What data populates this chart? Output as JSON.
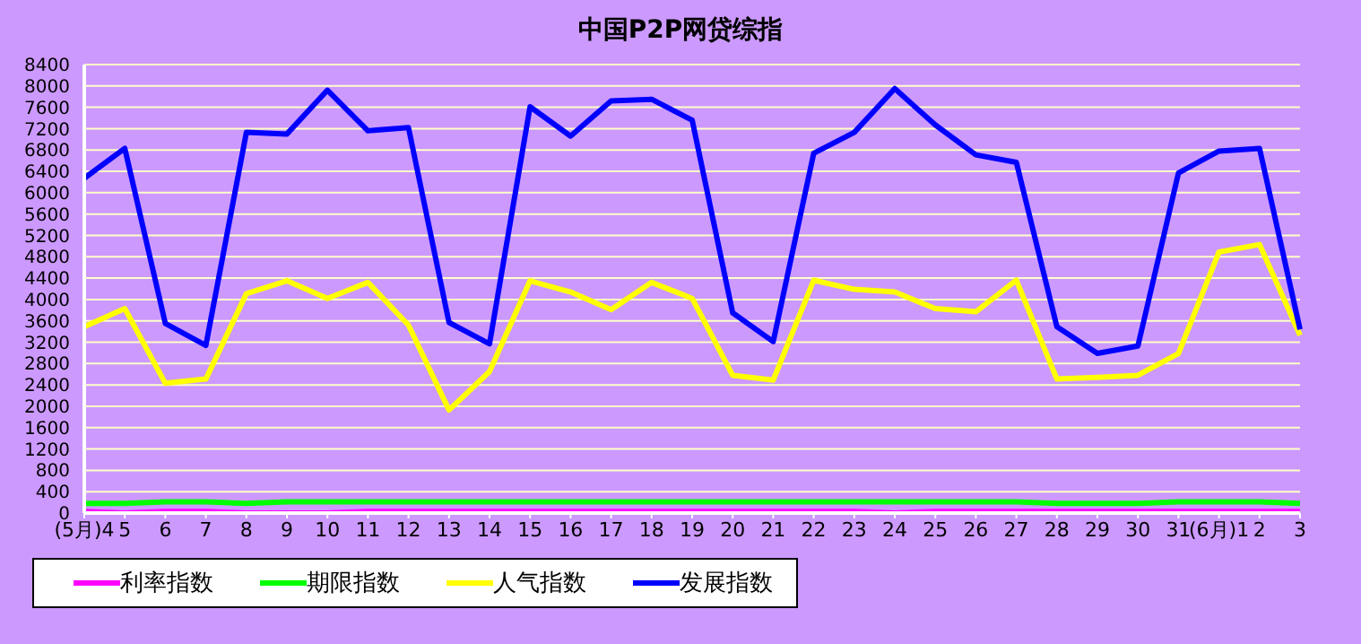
{
  "chart_data": {
    "type": "line",
    "title": "中国P2P网贷综指",
    "categories": [
      "(5月)4",
      "5",
      "6",
      "7",
      "8",
      "9",
      "10",
      "11",
      "12",
      "13",
      "14",
      "15",
      "16",
      "17",
      "18",
      "19",
      "20",
      "21",
      "22",
      "23",
      "24",
      "25",
      "26",
      "27",
      "28",
      "29",
      "30",
      "31",
      "(6月)1",
      "2",
      "3"
    ],
    "series": [
      {
        "name": "利率指数",
        "color": "#ff00ff",
        "values": [
          30,
          0,
          30,
          30,
          0,
          0,
          0,
          30,
          30,
          30,
          30,
          30,
          30,
          30,
          30,
          30,
          30,
          30,
          30,
          30,
          0,
          30,
          30,
          30,
          30,
          30,
          30,
          30,
          30,
          30,
          30
        ]
      },
      {
        "name": "期限指数",
        "color": "#00ff00",
        "values": [
          180,
          180,
          210,
          210,
          180,
          210,
          210,
          210,
          210,
          210,
          210,
          210,
          210,
          210,
          210,
          210,
          210,
          210,
          210,
          210,
          210,
          210,
          210,
          210,
          180,
          180,
          180,
          210,
          210,
          210,
          180
        ]
      },
      {
        "name": "人气指数",
        "color": "#ffff00",
        "values": [
          3490,
          3830,
          2430,
          2510,
          4110,
          4350,
          4020,
          4320,
          3520,
          1930,
          2650,
          4350,
          4140,
          3810,
          4320,
          4020,
          2580,
          2490,
          4360,
          4190,
          4140,
          3830,
          3770,
          4360,
          2510,
          2540,
          2580,
          2990,
          4890,
          5030,
          3330
        ]
      },
      {
        "name": "发展指数",
        "color": "#0000ff",
        "values": [
          6270,
          6830,
          3550,
          3140,
          7130,
          7100,
          7920,
          7160,
          7220,
          3570,
          3170,
          7610,
          7060,
          7720,
          7750,
          7360,
          3750,
          3210,
          6740,
          7130,
          7950,
          7270,
          6710,
          6570,
          3490,
          2990,
          3130,
          6370,
          6780,
          6830,
          3440
        ]
      }
    ],
    "ylim": [
      0,
      8400
    ],
    "yticks": [
      0,
      400,
      800,
      1200,
      1600,
      2000,
      2400,
      2800,
      3200,
      3600,
      4000,
      4400,
      4800,
      5200,
      5600,
      6000,
      6400,
      6800,
      7200,
      7600,
      8000,
      8400
    ],
    "grid": "y",
    "legend": "bottom left",
    "marker": "none",
    "line_style": "solid"
  }
}
